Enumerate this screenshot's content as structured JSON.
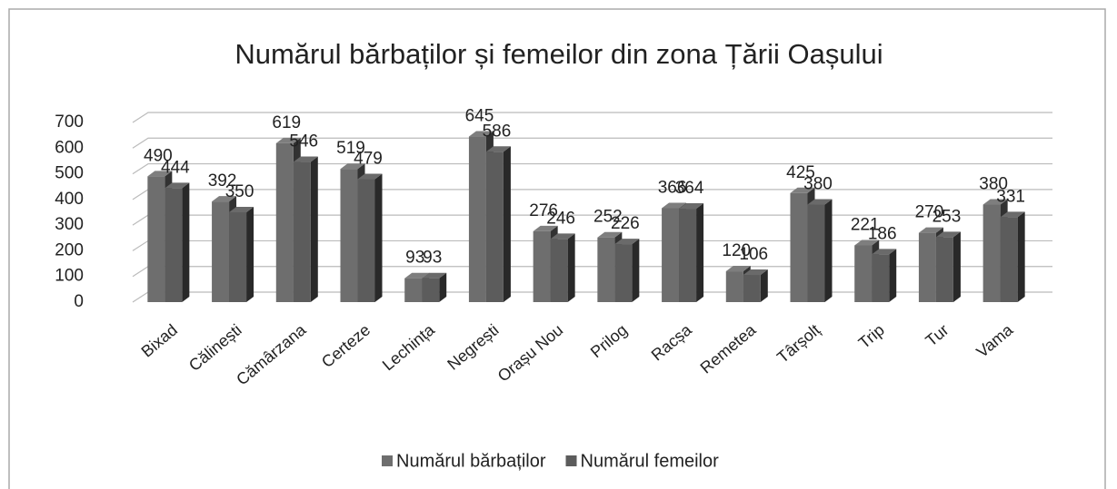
{
  "chart_data": {
    "type": "bar3d",
    "title": "Numărul bărbaților și femeilor din zona Țării Oașului",
    "categories": [
      "Bixad",
      "Călinești",
      "Cămârzana",
      "Certeze",
      "Lechința",
      "Negrești",
      "Orașu Nou",
      "Prilog",
      "Racșa",
      "Remetea",
      "Târșolț",
      "Trip",
      "Tur",
      "Vama"
    ],
    "series": [
      {
        "name": "Numărul bărbaților",
        "color": "#6e6e6e",
        "values": [
          490,
          392,
          619,
          519,
          93,
          645,
          276,
          252,
          366,
          120,
          425,
          221,
          270,
          380
        ]
      },
      {
        "name": "Numărul femeilor",
        "color": "#5c5c5c",
        "values": [
          444,
          350,
          546,
          479,
          93,
          586,
          246,
          226,
          364,
          106,
          380,
          186,
          253,
          331
        ]
      }
    ],
    "ylim": [
      0,
      700
    ],
    "yticks": [
      0,
      100,
      200,
      300,
      400,
      500,
      600,
      700
    ],
    "grid": true,
    "legend": "bottom"
  }
}
